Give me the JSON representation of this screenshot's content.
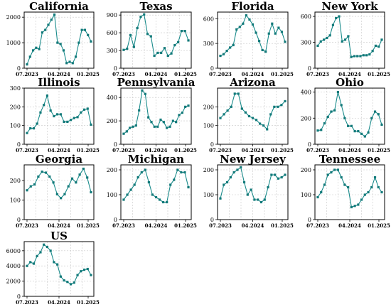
{
  "chart_data": [
    {
      "type": "line",
      "title": "California",
      "x_ticks": [
        "07.2023",
        "04.2024",
        "01.2025"
      ],
      "ylim": [
        0,
        2200
      ],
      "yticks": [
        0,
        1000,
        2000
      ],
      "values": [
        150,
        450,
        700,
        800,
        750,
        1400,
        1500,
        1700,
        1900,
        2100,
        1000,
        950,
        700,
        200,
        250,
        200,
        450,
        1000,
        1500,
        1500,
        1300,
        1050
      ]
    },
    {
      "type": "line",
      "title": "Texas",
      "x_ticks": [
        "07.2023",
        "04.2024",
        "01.2025"
      ],
      "ylim": [
        0,
        950
      ],
      "yticks": [
        0,
        300,
        600,
        900
      ],
      "values": [
        310,
        330,
        560,
        360,
        680,
        870,
        910,
        580,
        540,
        210,
        260,
        260,
        340,
        210,
        250,
        390,
        440,
        630,
        630,
        470
      ]
    },
    {
      "type": "line",
      "title": "Florida",
      "x_ticks": [
        "07.2023",
        "04.2024",
        "01.2025"
      ],
      "ylim": [
        0,
        680
      ],
      "yticks": [
        0,
        300,
        600
      ],
      "values": [
        150,
        170,
        210,
        250,
        280,
        470,
        500,
        540,
        640,
        590,
        530,
        430,
        330,
        220,
        200,
        420,
        540,
        420,
        490,
        440,
        320
      ]
    },
    {
      "type": "line",
      "title": "New York",
      "x_ticks": [
        "07.2023",
        "04.2024",
        "01.2025"
      ],
      "ylim": [
        0,
        650
      ],
      "yticks": [
        0,
        300,
        600
      ],
      "values": [
        260,
        310,
        330,
        350,
        380,
        500,
        580,
        600,
        310,
        330,
        370,
        130,
        140,
        140,
        140,
        150,
        150,
        160,
        200,
        260,
        250,
        330
      ]
    },
    {
      "type": "line",
      "title": "Illinois",
      "x_ticks": [
        "07.2023",
        "04.2024",
        "01.2025"
      ],
      "ylim": [
        0,
        300
      ],
      "yticks": [
        0,
        100,
        200,
        300
      ],
      "values": [
        60,
        85,
        85,
        110,
        170,
        210,
        260,
        180,
        150,
        160,
        160,
        120,
        120,
        130,
        140,
        145,
        170,
        185,
        190,
        105
      ]
    },
    {
      "type": "line",
      "title": "Pennsylvania",
      "x_ticks": [
        "07.2023",
        "04.2024",
        "01.2025"
      ],
      "ylim": [
        0,
        480
      ],
      "yticks": [
        0,
        200,
        400
      ],
      "values": [
        90,
        110,
        140,
        150,
        160,
        290,
        460,
        430,
        230,
        190,
        150,
        150,
        210,
        190,
        140,
        150,
        200,
        190,
        250,
        270,
        320,
        330
      ]
    },
    {
      "type": "line",
      "title": "Arizona",
      "x_ticks": [
        "07.2023",
        "04.2024",
        "01.2025"
      ],
      "ylim": [
        0,
        300
      ],
      "yticks": [
        0,
        100,
        200
      ],
      "values": [
        140,
        160,
        180,
        200,
        270,
        270,
        190,
        170,
        150,
        140,
        130,
        110,
        100,
        80,
        160,
        200,
        200,
        210,
        230
      ]
    },
    {
      "type": "line",
      "title": "Ohio",
      "x_ticks": [
        "07.2023",
        "04.2024",
        "01.2025"
      ],
      "ylim": [
        0,
        430
      ],
      "yticks": [
        0,
        200,
        400
      ],
      "values": [
        105,
        110,
        160,
        210,
        250,
        260,
        400,
        300,
        200,
        140,
        140,
        100,
        100,
        80,
        60,
        90,
        200,
        250,
        230,
        150
      ]
    },
    {
      "type": "line",
      "title": "Georgia",
      "x_ticks": [
        "07.2023",
        "04.2024",
        "01.2025"
      ],
      "ylim": [
        0,
        280
      ],
      "yticks": [
        0,
        100,
        200
      ],
      "values": [
        150,
        170,
        180,
        220,
        245,
        240,
        220,
        190,
        130,
        110,
        130,
        170,
        210,
        190,
        230,
        260,
        215,
        140
      ]
    },
    {
      "type": "line",
      "title": "Michigan",
      "x_ticks": [
        "07.2023",
        "04.2024",
        "01.2025"
      ],
      "ylim": [
        0,
        220
      ],
      "yticks": [
        0,
        100,
        200
      ],
      "values": [
        80,
        100,
        120,
        140,
        170,
        190,
        200,
        150,
        100,
        90,
        80,
        70,
        70,
        140,
        160,
        200,
        190,
        190,
        130
      ]
    },
    {
      "type": "line",
      "title": "New Jersey",
      "x_ticks": [
        "07.2023",
        "04.2024",
        "01.2025"
      ],
      "ylim": [
        0,
        220
      ],
      "yticks": [
        0,
        100,
        200
      ],
      "values": [
        85,
        140,
        150,
        170,
        190,
        200,
        210,
        150,
        100,
        120,
        80,
        80,
        70,
        80,
        130,
        180,
        180,
        165,
        170,
        180
      ]
    },
    {
      "type": "line",
      "title": "Tennessee",
      "x_ticks": [
        "07.2023",
        "04.2024",
        "01.2025"
      ],
      "ylim": [
        0,
        220
      ],
      "yticks": [
        0,
        100,
        200
      ],
      "values": [
        90,
        110,
        140,
        180,
        190,
        200,
        200,
        170,
        140,
        130,
        50,
        55,
        60,
        80,
        100,
        110,
        130,
        170,
        130,
        110
      ]
    },
    {
      "type": "line",
      "title": "US",
      "x_ticks": [
        "07.2023",
        "04.2024",
        "01.2025"
      ],
      "ylim": [
        0,
        7200
      ],
      "yticks": [
        0,
        2000,
        4000,
        6000
      ],
      "values": [
        4000,
        4500,
        4300,
        5300,
        5800,
        6800,
        6500,
        6000,
        4500,
        4200,
        2600,
        2100,
        1900,
        1600,
        1800,
        2800,
        3300,
        3500,
        3600,
        2800
      ]
    }
  ],
  "colors": {
    "line": "#1a8b8b",
    "marker": "#137a7a",
    "grid": "#c8c8c8",
    "frame": "#000000"
  }
}
